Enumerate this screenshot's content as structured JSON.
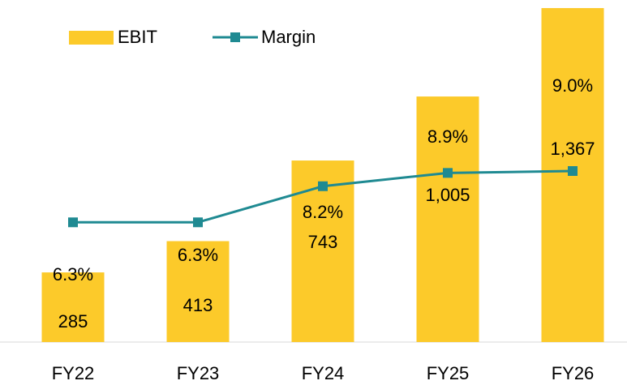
{
  "chart_data": {
    "type": "bar_line",
    "categories": [
      "FY22",
      "FY23",
      "FY24",
      "FY25",
      "FY26"
    ],
    "series": [
      {
        "name": "EBIT",
        "type": "bar",
        "color": "#fcca2a",
        "values": [
          285,
          413,
          743,
          1005,
          1367
        ],
        "value_labels": [
          "285",
          "413",
          "743",
          "1,005",
          "1,367"
        ]
      },
      {
        "name": "Margin",
        "type": "line",
        "axis": "y2",
        "color": "#1f8a92",
        "values": [
          6.3,
          6.3,
          8.2,
          8.9,
          9.0
        ],
        "value_labels": [
          "6.3%",
          "6.3%",
          "8.2%",
          "8.9%",
          "9.0%"
        ]
      }
    ],
    "ylim": [
      0,
      1400
    ],
    "y2lim": [
      0,
      18
    ],
    "legend": "top-left"
  }
}
